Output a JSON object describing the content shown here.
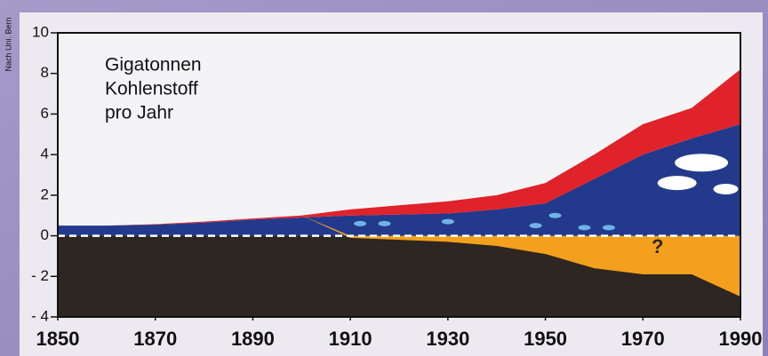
{
  "chart_data": {
    "type": "stacked-area",
    "annotations": [
      "Gigatonnen",
      "Kohlenstoff",
      "pro Jahr"
    ],
    "marker": "?",
    "source": "Nach Uni. Bern",
    "x": [
      1850,
      1860,
      1870,
      1880,
      1890,
      1900,
      1910,
      1920,
      1930,
      1940,
      1950,
      1960,
      1970,
      1980,
      1990
    ],
    "series": [
      {
        "color": "#233a8c",
        "values": [
          0.5,
          0.5,
          0.55,
          0.65,
          0.8,
          0.9,
          1.0,
          1.05,
          1.1,
          1.3,
          1.6,
          2.8,
          4.0,
          4.8,
          5.5
        ]
      },
      {
        "color": "#e0222a",
        "values": [
          0,
          0,
          0.02,
          0.05,
          0.05,
          0.1,
          0.3,
          0.45,
          0.6,
          0.7,
          1.0,
          1.2,
          1.5,
          1.5,
          2.7
        ]
      },
      {
        "color": "#f2a01e",
        "values": [
          0,
          0,
          0,
          0,
          0,
          0,
          -0.1,
          -0.2,
          -0.3,
          -0.5,
          -0.9,
          -1.6,
          -1.9,
          -1.9,
          -3.0
        ]
      }
    ],
    "below_color": "#2e2620",
    "xlim": [
      1850,
      1990
    ],
    "xticks": [
      1850,
      1870,
      1890,
      1910,
      1930,
      1950,
      1970,
      1990
    ],
    "ylim": [
      -4,
      10
    ],
    "yticks": [
      {
        "value": -4,
        "label": "- 4"
      },
      {
        "value": -2,
        "label": "- 2"
      },
      0,
      2,
      4,
      6,
      8,
      10
    ]
  }
}
